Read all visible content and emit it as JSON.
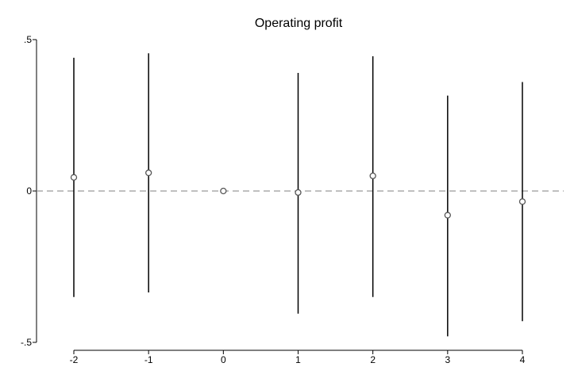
{
  "chart_data": {
    "type": "scatter",
    "title": "Operating profit",
    "xlabel": "",
    "ylabel": "",
    "x_ticks": [
      "-2",
      "-1",
      "0",
      "1",
      "2",
      "3",
      "4"
    ],
    "y_ticks": [
      {
        "value": 0.5,
        "label": ".5"
      },
      {
        "value": 0,
        "label": "0"
      },
      {
        "value": -0.5,
        "label": "-.5"
      }
    ],
    "xlim": [
      -2.5,
      4.5
    ],
    "ylim": [
      -0.5,
      0.5
    ],
    "grid": false,
    "reference_line": {
      "y": 0,
      "style": "dashed",
      "color": "#999999"
    },
    "series": [
      {
        "x": [
          -2,
          -1,
          0,
          1,
          2,
          3,
          4
        ],
        "y": [
          0.045,
          0.06,
          0,
          -0.005,
          0.05,
          -0.08,
          -0.035
        ],
        "ci_low": [
          -0.35,
          -0.335,
          0,
          -0.405,
          -0.35,
          -0.48,
          -0.43
        ],
        "ci_high": [
          0.44,
          0.455,
          0,
          0.39,
          0.445,
          0.315,
          0.36
        ]
      }
    ],
    "colors": {
      "marker": "#555555",
      "ci": "#000000",
      "axis": "#000000"
    }
  }
}
